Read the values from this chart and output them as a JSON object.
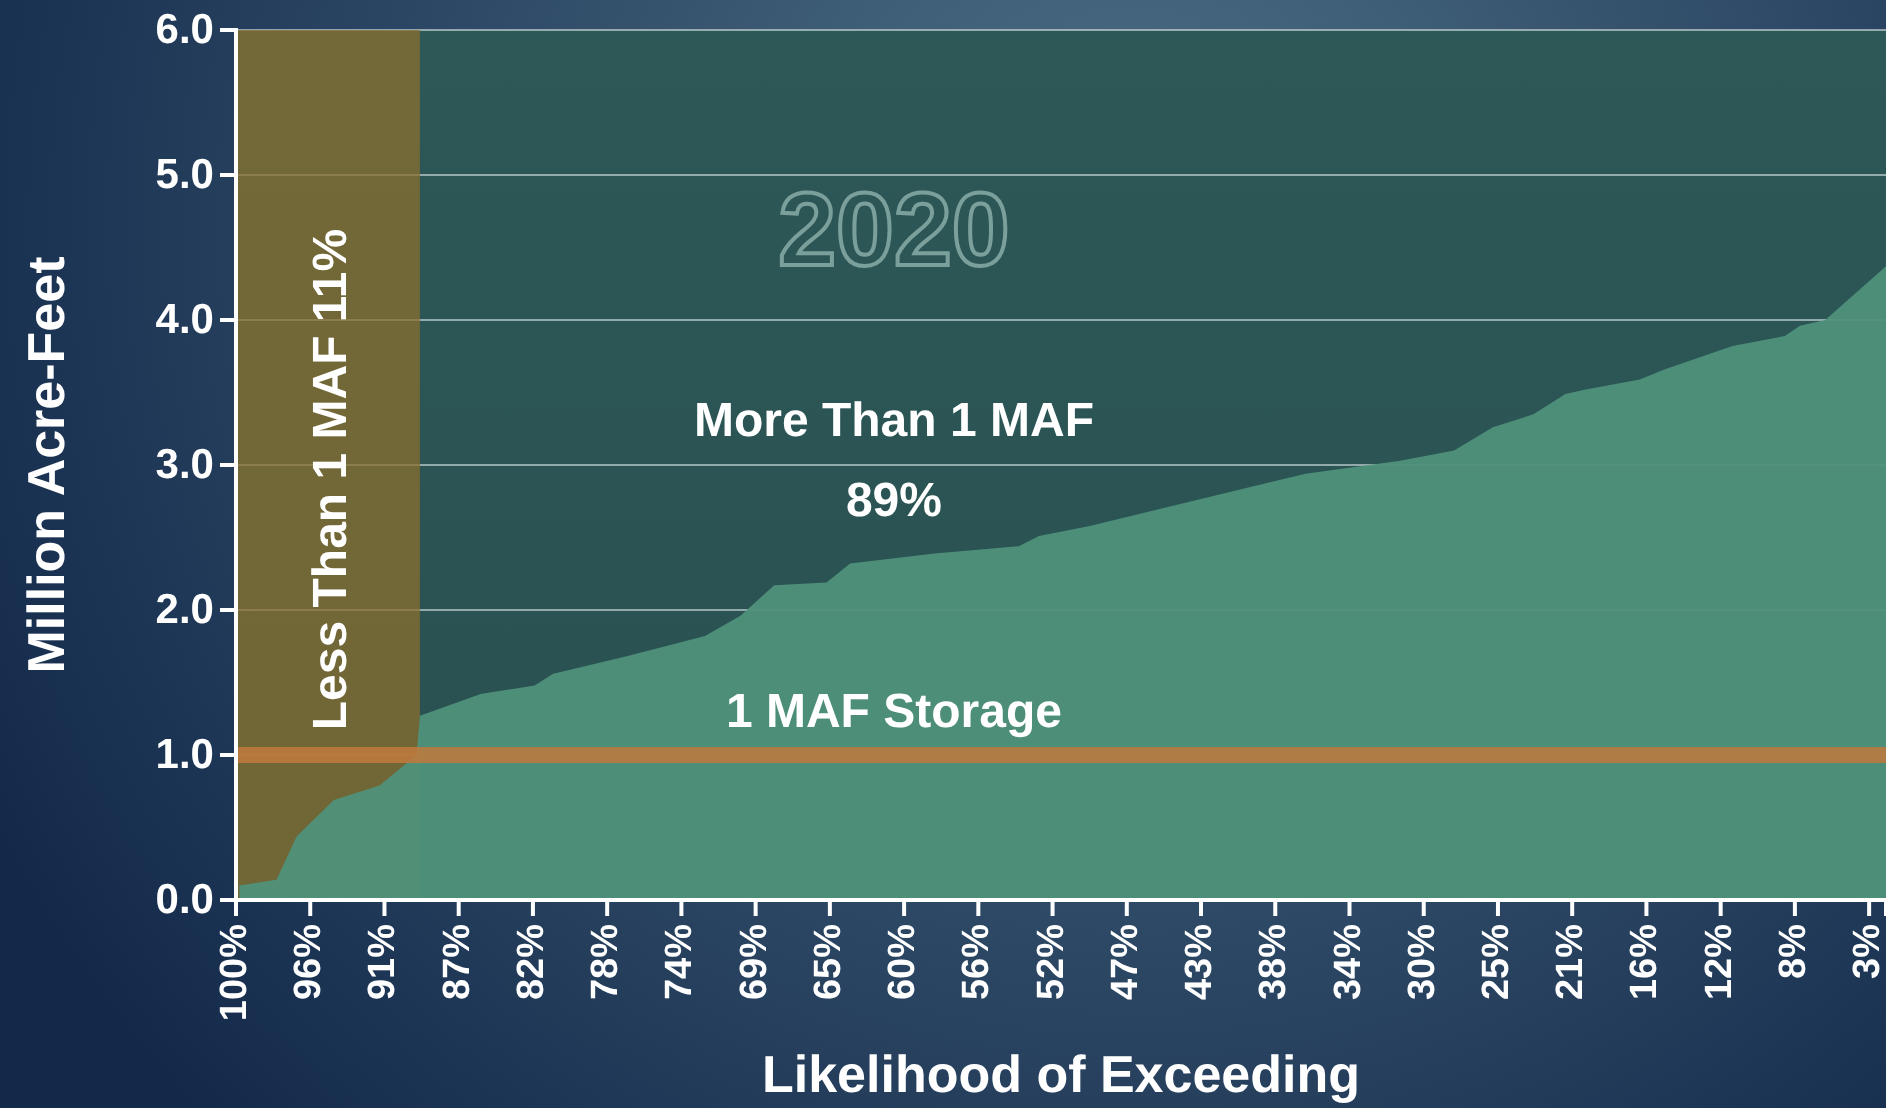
{
  "chart_data": {
    "type": "area",
    "title": "2020",
    "xlabel": "Likelihood of Exceeding",
    "ylabel": "Million Acre-Feet",
    "x": [
      99.8,
      97.6,
      96.4,
      94.2,
      91.5,
      89.3,
      89.1,
      85.5,
      82.3,
      81.2,
      76.9,
      72.2,
      70.1,
      68.1,
      65.0,
      63.6,
      58.6,
      53.6,
      52.4,
      49.4,
      36.6,
      31.0,
      27.8,
      25.5,
      23.1,
      21.2,
      20.0,
      16.8,
      15.3,
      11.3,
      8.2,
      7.3,
      5.8,
      2.2
    ],
    "series": [
      {
        "color": "#4f917b",
        "values": [
          0.1,
          0.14,
          0.44,
          0.69,
          0.79,
          1.0,
          1.27,
          1.42,
          1.48,
          1.56,
          1.68,
          1.82,
          1.96,
          2.17,
          2.19,
          2.32,
          2.39,
          2.44,
          2.51,
          2.58,
          2.94,
          3.03,
          3.1,
          3.26,
          3.35,
          3.49,
          3.52,
          3.59,
          3.66,
          3.82,
          3.89,
          3.96,
          4.0,
          4.37
        ]
      }
    ],
    "xlim": [
      100,
      2.2
    ],
    "xticks": [
      {
        "value": 100,
        "label": "100%"
      },
      {
        "value": 95.6,
        "label": "96%"
      },
      {
        "value": 91.2,
        "label": "91%"
      },
      {
        "value": 86.8,
        "label": "87%"
      },
      {
        "value": 82.4,
        "label": "82%"
      },
      {
        "value": 78,
        "label": "78%"
      },
      {
        "value": 73.6,
        "label": "74%"
      },
      {
        "value": 69.2,
        "label": "69%"
      },
      {
        "value": 64.8,
        "label": "65%"
      },
      {
        "value": 60.4,
        "label": "60%"
      },
      {
        "value": 56,
        "label": "56%"
      },
      {
        "value": 51.6,
        "label": "52%"
      },
      {
        "value": 47.2,
        "label": "47%"
      },
      {
        "value": 42.8,
        "label": "43%"
      },
      {
        "value": 38.4,
        "label": "38%"
      },
      {
        "value": 34,
        "label": "34%"
      },
      {
        "value": 29.6,
        "label": "30%"
      },
      {
        "value": 25.2,
        "label": "25%"
      },
      {
        "value": 20.8,
        "label": "21%"
      },
      {
        "value": 16.4,
        "label": "16%"
      },
      {
        "value": 12,
        "label": "12%"
      },
      {
        "value": 7.6,
        "label": "8%"
      },
      {
        "value": 3.2,
        "label": "3%"
      }
    ],
    "ylim": [
      0,
      6
    ],
    "yticks": [
      {
        "value": 0,
        "label": "0.0"
      },
      {
        "value": 1,
        "label": "1.0"
      },
      {
        "value": 2,
        "label": "2.0"
      },
      {
        "value": 3,
        "label": "3.0"
      },
      {
        "value": 4,
        "label": "4.0"
      },
      {
        "value": 5,
        "label": "5.0"
      },
      {
        "value": 6,
        "label": "6.0"
      }
    ],
    "grid": "y",
    "bands": [
      {
        "axis": "x",
        "from": 100,
        "to": 89.1,
        "label": "Less Than 1 MAF 11%",
        "color": "#8a6d2e"
      }
    ],
    "ref_lines": [
      {
        "axis": "y",
        "value": 1,
        "label": "1 MAF Storage",
        "color": "#c27a3c"
      }
    ],
    "annotations": [
      "More Than 1 MAF",
      "89%"
    ]
  }
}
